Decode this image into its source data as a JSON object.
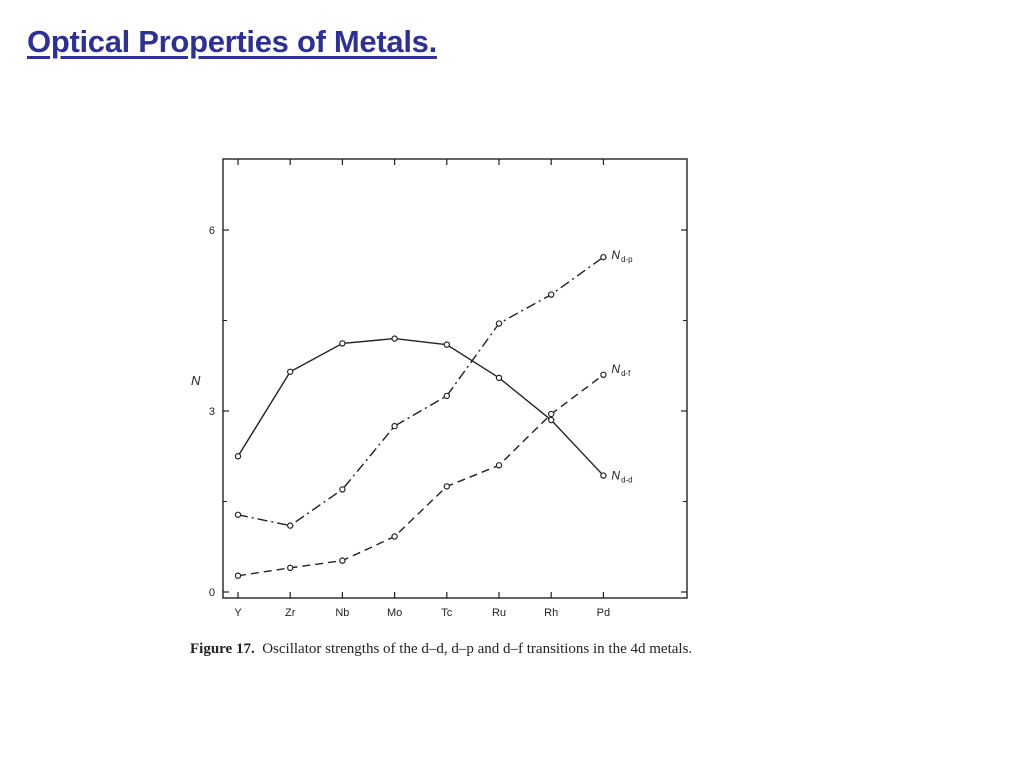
{
  "slide": {
    "title": "Optical Properties of Metals.",
    "title_color": "#2e3192"
  },
  "figure": {
    "label": "Figure 17.",
    "caption": "Oscillator strengths of the d–d, d–p and d–f transitions in the 4d metals."
  },
  "chart_data": {
    "type": "line",
    "title": "",
    "xlabel": "",
    "ylabel": "N",
    "categories": [
      "Y",
      "Zr",
      "Nb",
      "Mo",
      "Tc",
      "Ru",
      "Rh",
      "Pd"
    ],
    "ylim": [
      0,
      7.2
    ],
    "yticks": [
      0,
      3,
      6
    ],
    "grid": false,
    "series": [
      {
        "name": "d-d",
        "label_main": "N",
        "label_sub": "d-d",
        "line_style": "solid",
        "values": [
          2.25,
          3.65,
          4.12,
          4.2,
          4.1,
          3.55,
          2.85,
          1.93
        ]
      },
      {
        "name": "d-p",
        "label_main": "N",
        "label_sub": "d-p",
        "line_style": "dash-dot",
        "values": [
          1.28,
          1.1,
          1.7,
          2.75,
          3.25,
          4.45,
          4.93,
          5.55
        ]
      },
      {
        "name": "d-f",
        "label_main": "N",
        "label_sub": "d-f",
        "line_style": "dashed",
        "values": [
          0.27,
          0.4,
          0.52,
          0.92,
          1.75,
          2.1,
          2.95,
          3.6
        ]
      }
    ]
  }
}
